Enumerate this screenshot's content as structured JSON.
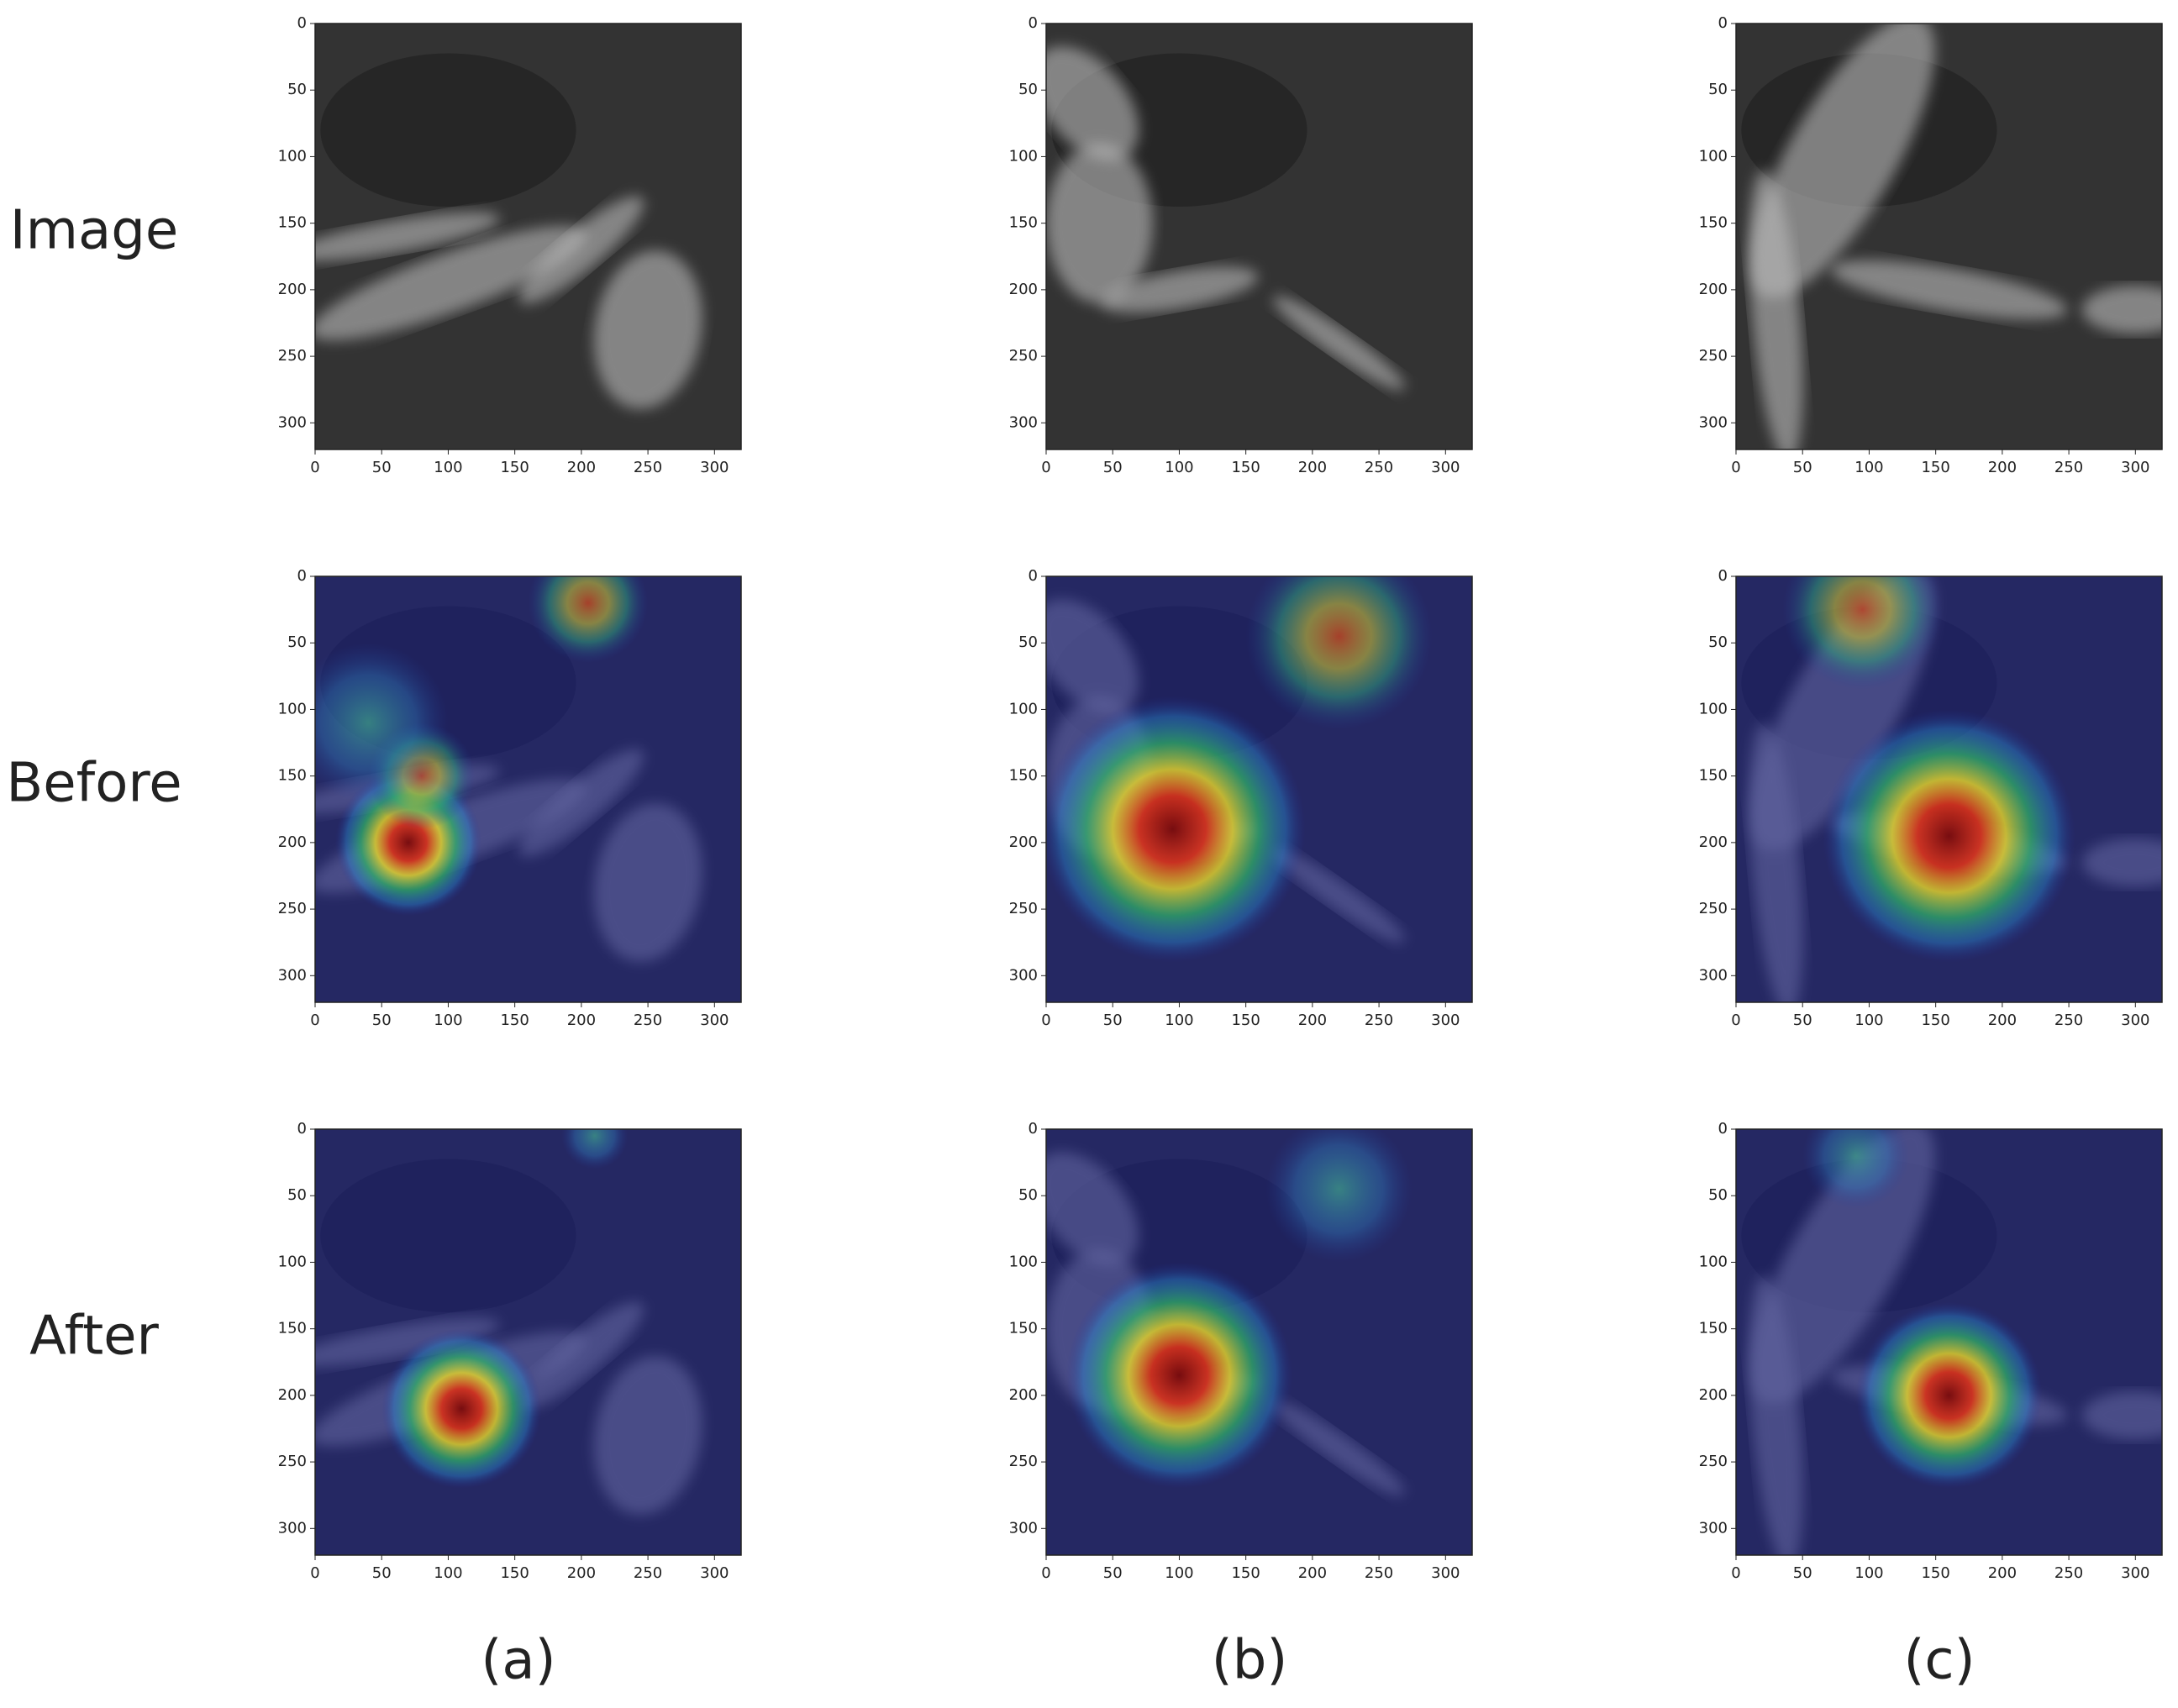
{
  "row_labels": [
    "Image",
    "Before",
    "After"
  ],
  "column_labels": [
    "(a)",
    "(b)",
    "(c)"
  ],
  "axes": {
    "xlim": [
      0,
      320
    ],
    "ylim": [
      0,
      320
    ],
    "xticks": [
      0,
      50,
      100,
      150,
      200,
      250,
      300
    ],
    "yticks": [
      0,
      50,
      100,
      150,
      200,
      250,
      300
    ]
  }
}
